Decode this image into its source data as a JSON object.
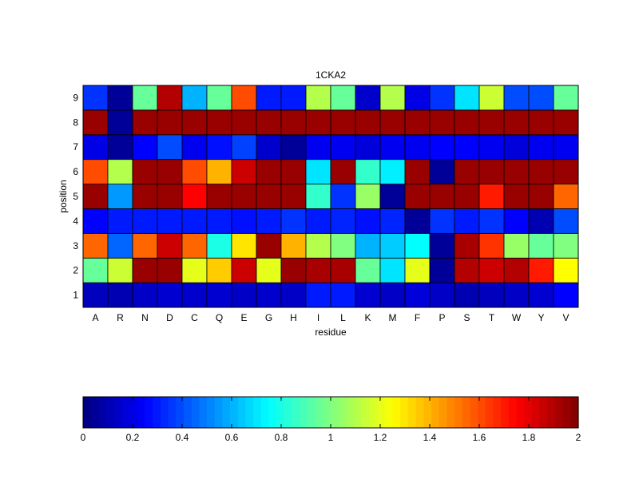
{
  "chart_data": {
    "type": "heatmap",
    "title": "1CKA2",
    "xlabel": "residue",
    "ylabel": "position",
    "x_categories": [
      "A",
      "R",
      "N",
      "D",
      "C",
      "Q",
      "E",
      "G",
      "H",
      "I",
      "L",
      "K",
      "M",
      "F",
      "P",
      "S",
      "T",
      "W",
      "Y",
      "V"
    ],
    "y_categories": [
      "1",
      "2",
      "3",
      "4",
      "5",
      "6",
      "7",
      "8",
      "9"
    ],
    "values": [
      [
        0.12,
        0.1,
        0.14,
        0.16,
        0.15,
        0.16,
        0.14,
        0.15,
        0.14,
        0.3,
        0.3,
        0.16,
        0.14,
        0.18,
        0.14,
        0.1,
        0.12,
        0.14,
        0.16,
        0.25
      ],
      [
        0.95,
        1.15,
        1.95,
        1.95,
        1.2,
        1.35,
        1.85,
        1.2,
        1.95,
        1.92,
        1.92,
        0.95,
        0.7,
        1.2,
        0.05,
        1.9,
        1.85,
        1.9,
        1.7,
        1.25
      ],
      [
        1.55,
        0.45,
        1.55,
        1.85,
        1.55,
        0.8,
        1.3,
        1.95,
        1.4,
        1.1,
        1.0,
        0.6,
        0.65,
        0.75,
        0.05,
        1.92,
        1.65,
        1.05,
        0.95,
        1.0
      ],
      [
        0.25,
        0.3,
        0.3,
        0.3,
        0.3,
        0.3,
        0.28,
        0.3,
        0.35,
        0.3,
        0.32,
        0.28,
        0.32,
        0.05,
        0.35,
        0.3,
        0.35,
        0.25,
        0.1,
        0.4
      ],
      [
        1.95,
        0.55,
        1.95,
        1.95,
        1.75,
        1.95,
        1.95,
        1.95,
        1.95,
        0.85,
        0.35,
        1.05,
        0.05,
        1.95,
        1.95,
        1.95,
        1.7,
        1.95,
        1.95,
        1.55
      ],
      [
        1.6,
        1.1,
        1.95,
        1.95,
        1.6,
        1.4,
        1.85,
        1.95,
        1.95,
        0.7,
        1.95,
        0.85,
        0.72,
        1.95,
        0.05,
        1.95,
        1.95,
        1.95,
        1.95,
        1.95
      ],
      [
        0.2,
        0.05,
        0.25,
        0.4,
        0.22,
        0.28,
        0.38,
        0.15,
        0.05,
        0.22,
        0.22,
        0.18,
        0.22,
        0.22,
        0.25,
        0.25,
        0.22,
        0.18,
        0.22,
        0.22
      ],
      [
        1.95,
        0.05,
        1.95,
        1.95,
        1.95,
        1.95,
        1.95,
        1.95,
        1.95,
        1.95,
        1.95,
        1.95,
        1.95,
        1.95,
        1.95,
        1.95,
        1.95,
        1.95,
        1.95,
        1.95
      ],
      [
        0.35,
        0.05,
        0.95,
        1.9,
        0.6,
        0.95,
        1.6,
        0.3,
        0.3,
        1.1,
        0.95,
        0.15,
        1.1,
        0.2,
        0.35,
        0.7,
        1.15,
        0.4,
        0.4,
        0.95
      ]
    ],
    "colorbar": {
      "range": [
        0,
        2
      ],
      "ticks": [
        "0",
        "0.2",
        "0.4",
        "0.6",
        "0.8",
        "1",
        "1.2",
        "1.4",
        "1.6",
        "1.8",
        "2"
      ],
      "orientation": "horizontal",
      "placement": "bottom"
    },
    "colormap": "jet",
    "grid": false
  }
}
